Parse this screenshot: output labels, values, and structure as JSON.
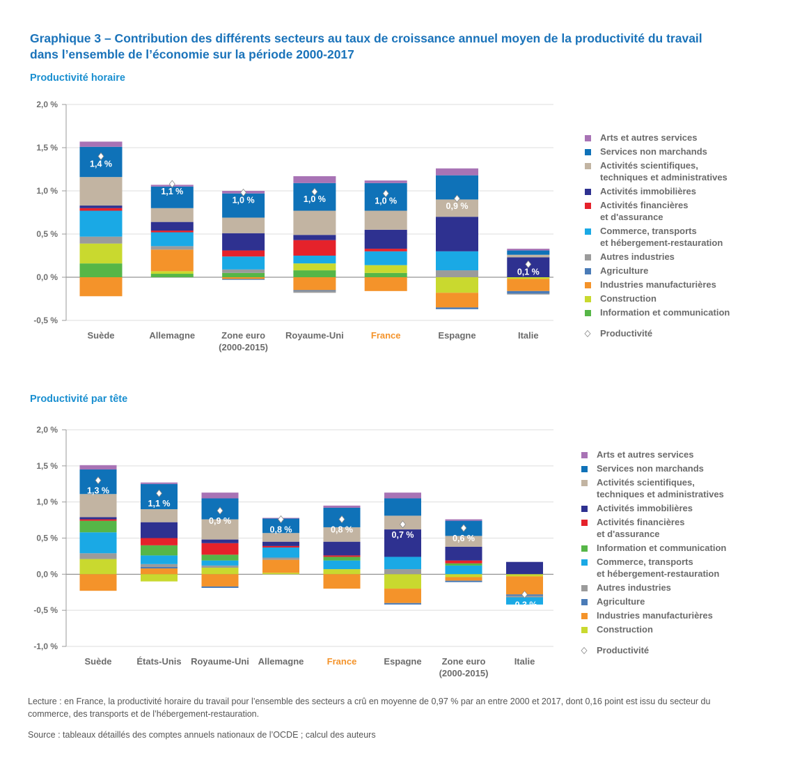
{
  "title": "Graphique 3 – Contribution des différents secteurs au taux de croissance annuel moyen de la productivité du travail dans l’ensemble de l’économie sur la période 2000-2017",
  "reading_note": "Lecture : en France, la productivité horaire du travail pour l’ensemble des secteurs a crû en moyenne de 0,97 % par an entre 2000 et 2017, dont 0,16 point est issu du secteur du commerce, des transports et de l’hébergement-restauration.",
  "source_note": "Source : tableaux détaillés des comptes annuels nationaux de l’OCDE ; calcul des auteurs",
  "colors": {
    "arts": "#a873b5",
    "nonmarch": "#0f72b8",
    "sci": "#c2b4a2",
    "immo": "#2e3190",
    "fin": "#e5222b",
    "commerce": "#1aa9e5",
    "autres": "#9b9b9b",
    "agri": "#4a7bb7",
    "manuf": "#f4932a",
    "constr": "#c9d92f",
    "info": "#56b647",
    "highlight": "#f4932a",
    "title": "#1a73ba",
    "subtitle": "#1a8fd0"
  },
  "chart_data": [
    {
      "type": "bar",
      "stacked": true,
      "subtitle": "Productivité horaire",
      "ylim": [
        -0.5,
        2.0
      ],
      "yticks": [
        -0.5,
        0.0,
        0.5,
        1.0,
        1.5,
        2.0
      ],
      "ytick_labels": [
        "-0,5 %",
        "0,0 %",
        "0,5 %",
        "1,0 %",
        "1,5 %",
        "2,0 %"
      ],
      "grid": true,
      "legend_position": "right",
      "highlight_category": "France",
      "categories": [
        "Suède",
        "Allemagne",
        "Zone euro\n(2000-2015)",
        "Royaume-Uni",
        "France",
        "Espagne",
        "Italie"
      ],
      "series": [
        {
          "name": "Arts et autres services",
          "key": "arts",
          "values": [
            0.06,
            0.02,
            0.03,
            0.08,
            0.03,
            0.08,
            0.02
          ]
        },
        {
          "name": "Services non marchands",
          "key": "nonmarch",
          "values": [
            0.35,
            0.25,
            0.28,
            0.32,
            0.32,
            0.28,
            0.05
          ]
        },
        {
          "name": "Activités scientifiques,\ntechniques et administratives",
          "key": "sci",
          "values": [
            0.33,
            0.16,
            0.18,
            0.28,
            0.22,
            0.2,
            0.03
          ]
        },
        {
          "name": "Activités immobilières",
          "key": "immo",
          "values": [
            0.03,
            0.1,
            0.2,
            0.06,
            0.22,
            0.4,
            0.23
          ]
        },
        {
          "name": "Activités financières\net d'assurance",
          "key": "fin",
          "values": [
            0.03,
            0.02,
            0.07,
            0.18,
            0.03,
            0.0,
            0.0
          ]
        },
        {
          "name": "Commerce, transports\net hébergement-restauration",
          "key": "commerce",
          "values": [
            0.3,
            0.16,
            0.15,
            0.09,
            0.16,
            0.22,
            0.0
          ]
        },
        {
          "name": "Autres industries",
          "key": "autres",
          "values": [
            0.08,
            0.04,
            0.04,
            -0.02,
            0.0,
            0.08,
            -0.01
          ]
        },
        {
          "name": "Agriculture",
          "key": "agri",
          "values": [
            0.0,
            0.0,
            -0.01,
            -0.01,
            0.0,
            -0.02,
            -0.03
          ]
        },
        {
          "name": "Industries manufacturières",
          "key": "manuf",
          "values": [
            -0.22,
            0.25,
            -0.02,
            -0.15,
            -0.16,
            -0.17,
            -0.14
          ]
        },
        {
          "name": "Construction",
          "key": "constr",
          "values": [
            0.23,
            0.03,
            0.0,
            0.08,
            0.09,
            -0.18,
            -0.02
          ]
        },
        {
          "name": "Information et communication",
          "key": "info",
          "values": [
            0.16,
            0.04,
            0.05,
            0.08,
            0.05,
            0.0,
            0.0
          ]
        }
      ],
      "productivity": {
        "name": "Productivité",
        "values": [
          1.4,
          1.08,
          0.98,
          0.99,
          0.97,
          0.91,
          0.15
        ],
        "labels": [
          "1,4 %",
          "1,1 %",
          "1,0 %",
          "1,0 %",
          "1,0 %",
          "0,9 %",
          "0,1 %"
        ],
        "label_series": [
          "nonmarch",
          "nonmarch",
          "nonmarch",
          "nonmarch",
          "nonmarch",
          "sci",
          "manuf"
        ]
      }
    },
    {
      "type": "bar",
      "stacked": true,
      "subtitle": "Productivité par tête",
      "ylim": [
        -1.0,
        2.0
      ],
      "yticks": [
        -1.0,
        -0.5,
        0.0,
        0.5,
        1.0,
        1.5,
        2.0
      ],
      "ytick_labels": [
        "-1,0 %",
        "-0,5 %",
        "0,0 %",
        "0,5 %",
        "1,0 %",
        "1,5 %",
        "2,0 %"
      ],
      "grid": true,
      "legend_position": "right",
      "highlight_category": "France",
      "categories": [
        "Suède",
        "États-Unis",
        "Royaume-Uni",
        "Allemagne",
        "France",
        "Espagne",
        "Zone euro\n(2000-2015)",
        "Italie"
      ],
      "series": [
        {
          "name": "Arts et autres services",
          "key": "arts",
          "values": [
            0.06,
            0.02,
            0.08,
            0.01,
            0.03,
            0.08,
            0.02,
            0.0
          ]
        },
        {
          "name": "Services non marchands",
          "key": "nonmarch",
          "values": [
            0.34,
            0.35,
            0.29,
            0.2,
            0.27,
            0.24,
            0.21,
            0.0
          ]
        },
        {
          "name": "Activités scientifiques,\ntechniques et administratives",
          "key": "sci",
          "values": [
            0.32,
            0.18,
            0.28,
            0.12,
            0.2,
            0.19,
            0.15,
            0.0
          ]
        },
        {
          "name": "Activités immobilières",
          "key": "immo",
          "values": [
            0.03,
            0.22,
            0.05,
            0.06,
            0.19,
            0.38,
            0.19,
            0.17
          ]
        },
        {
          "name": "Activités financières\net d'assurance",
          "key": "fin",
          "values": [
            0.02,
            0.1,
            0.16,
            0.02,
            0.02,
            0.0,
            0.04,
            0.0
          ]
        },
        {
          "name": "Information et communication",
          "key": "info",
          "values": [
            0.16,
            0.14,
            0.08,
            0.0,
            0.05,
            0.0,
            0.03,
            0.0
          ]
        },
        {
          "name": "Commerce, transports\net hébergement-restauration",
          "key": "commerce",
          "values": [
            0.29,
            0.12,
            0.07,
            0.14,
            0.12,
            0.17,
            0.12,
            -0.1
          ]
        },
        {
          "name": "Autres industries",
          "key": "autres",
          "values": [
            0.08,
            0.04,
            0.03,
            0.03,
            0.0,
            0.07,
            0.0,
            -0.02
          ]
        },
        {
          "name": "Agriculture",
          "key": "agri",
          "values": [
            0.0,
            0.02,
            -0.02,
            0.0,
            0.0,
            -0.02,
            -0.02,
            -0.02
          ]
        },
        {
          "name": "Industries manufacturières",
          "key": "manuf",
          "values": [
            -0.23,
            0.08,
            -0.17,
            0.18,
            -0.2,
            -0.2,
            -0.05,
            -0.25
          ]
        },
        {
          "name": "Construction",
          "key": "constr",
          "values": [
            0.21,
            -0.1,
            0.09,
            0.02,
            0.07,
            -0.2,
            -0.04,
            -0.03
          ]
        }
      ],
      "productivity": {
        "name": "Productivité",
        "values": [
          1.3,
          1.12,
          0.88,
          0.76,
          0.76,
          0.69,
          0.64,
          -0.28
        ],
        "labels": [
          "1,3 %",
          "1,1 %",
          "0,9 %",
          "0,8 %",
          "0,8 %",
          "0,7 %",
          "0,6 %",
          "-0,3 %"
        ],
        "label_series": [
          "sci",
          "nonmarch",
          "sci",
          "nonmarch",
          "sci",
          "immo",
          "sci",
          "manuf"
        ]
      }
    }
  ]
}
